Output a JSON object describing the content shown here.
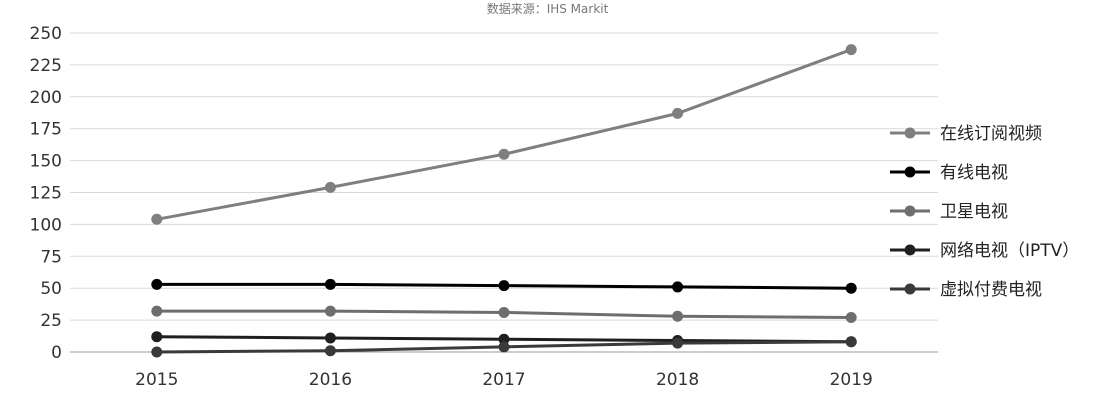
{
  "chart_data": {
    "type": "line",
    "title": "",
    "source_note": "数据来源：IHS Markit",
    "xlabel": "",
    "ylabel": "",
    "categories": [
      "2015",
      "2016",
      "2017",
      "2018",
      "2019"
    ],
    "ylim": [
      0,
      250
    ],
    "y_ticks": [
      0,
      25,
      50,
      75,
      100,
      125,
      150,
      175,
      200,
      225,
      250
    ],
    "grid": true,
    "legend_position": "right",
    "series": [
      {
        "name": "在线订阅视频",
        "color": "#7f7f7f",
        "values": [
          104,
          129,
          155,
          187,
          237
        ]
      },
      {
        "name": "有线电视",
        "color": "#000000",
        "values": [
          53,
          53,
          52,
          51,
          50
        ]
      },
      {
        "name": "卫星电视",
        "color": "#6e6e6e",
        "values": [
          32,
          32,
          31,
          28,
          27
        ]
      },
      {
        "name": "网络电视（IPTV）",
        "color": "#1f1f1f",
        "values": [
          12,
          11,
          10,
          9,
          8
        ]
      },
      {
        "name": "虚拟付费电视",
        "color": "#3a3a3a",
        "values": [
          0,
          1,
          4,
          7,
          8
        ]
      }
    ]
  }
}
